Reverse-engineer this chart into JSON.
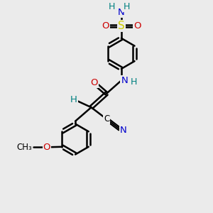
{
  "bg_color": "#ebebeb",
  "bond_color": "#000000",
  "bond_width": 1.8,
  "atom_colors": {
    "C": "#000000",
    "N": "#0000cc",
    "O": "#cc0000",
    "S": "#cccc00",
    "H": "#008080"
  },
  "font_size": 9.5,
  "fig_size": [
    3.0,
    3.0
  ],
  "dpi": 100
}
